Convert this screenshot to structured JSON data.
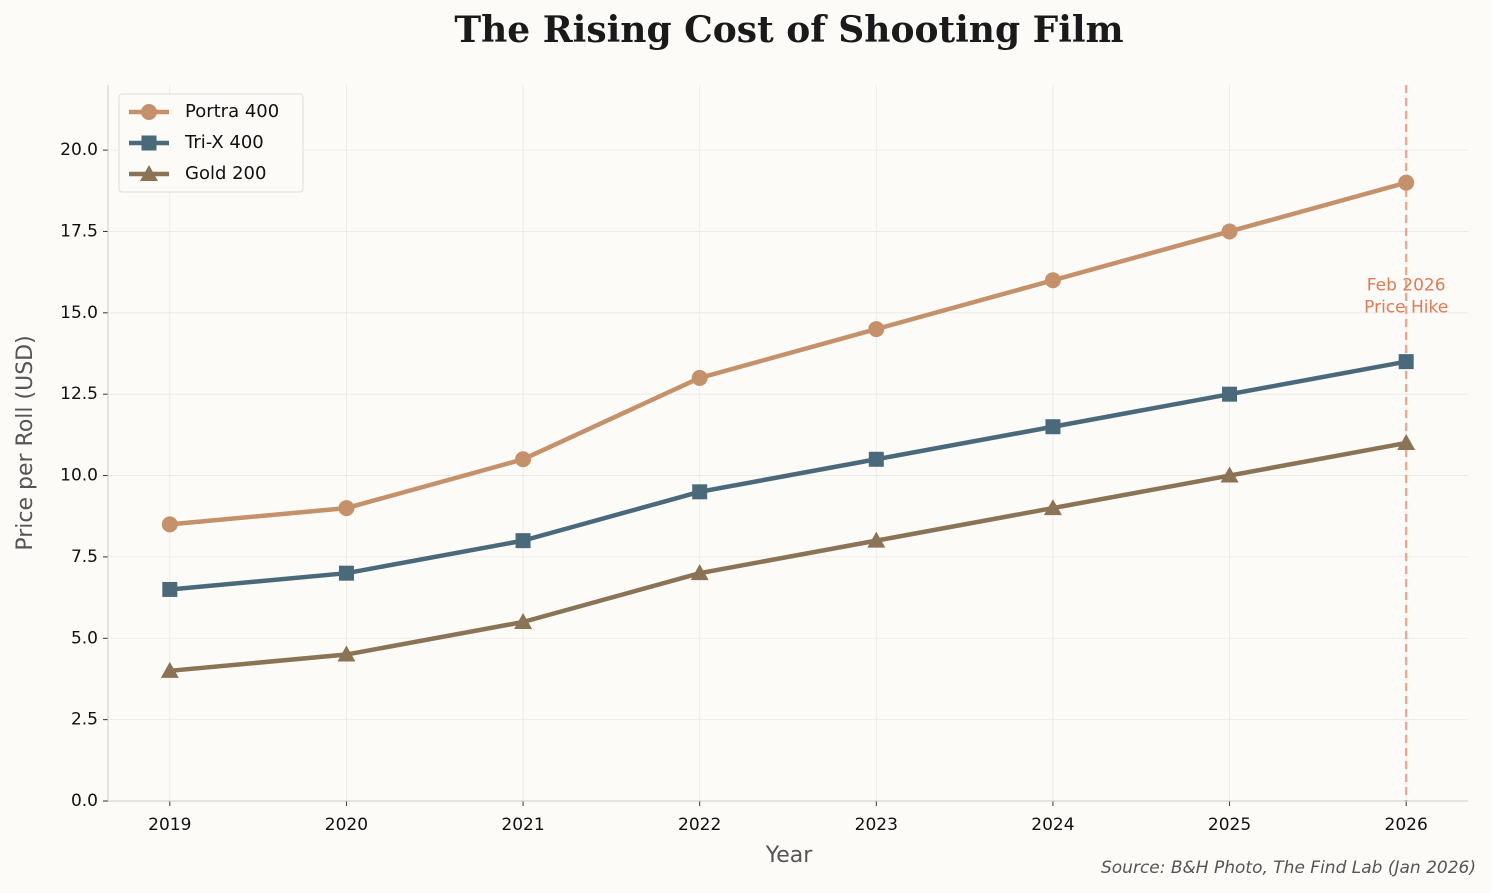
{
  "chart_data": {
    "type": "line",
    "title": "The Rising Cost of Shooting Film",
    "xlabel": "Year",
    "ylabel": "Price per Roll (USD)",
    "source": "Source: B&H Photo, The Find Lab (Jan 2026)",
    "x": [
      2019,
      2020,
      2021,
      2022,
      2023,
      2024,
      2025,
      2026
    ],
    "series": [
      {
        "name": "Portra 400",
        "color": "#c4916a",
        "marker": "circle",
        "values": [
          8.5,
          9,
          10.5,
          13,
          14.5,
          16,
          17.5,
          19
        ]
      },
      {
        "name": "Tri-X 400",
        "color": "#4a6a7c",
        "marker": "square",
        "values": [
          6.5,
          7,
          8,
          9.5,
          10.5,
          11.5,
          12.5,
          13.5
        ]
      },
      {
        "name": "Gold 200",
        "color": "#8b7355",
        "marker": "triangle",
        "values": [
          4,
          4.5,
          5.5,
          7,
          8,
          9,
          10,
          11
        ]
      }
    ],
    "xlim": [
      2018.65,
      2026.35
    ],
    "ylim": [
      0,
      22
    ],
    "xticks": [
      2019,
      2020,
      2021,
      2022,
      2023,
      2024,
      2025,
      2026
    ],
    "yticks": [
      {
        "value": 0,
        "label": "0.0"
      },
      {
        "value": 2.5,
        "label": "2.5"
      },
      {
        "value": 5,
        "label": "5.0"
      },
      {
        "value": 7.5,
        "label": "7.5"
      },
      {
        "value": 10,
        "label": "10.0"
      },
      {
        "value": 12.5,
        "label": "12.5"
      },
      {
        "value": 15,
        "label": "15.0"
      },
      {
        "value": 17.5,
        "label": "17.5"
      },
      {
        "value": 20,
        "label": "20.0"
      }
    ],
    "grid": true,
    "legend": "upper-left",
    "annotation": {
      "lines": [
        "Feb 2026",
        "Price Hike"
      ],
      "x": 2026,
      "y": 15.5,
      "color": "#e07b54"
    }
  }
}
